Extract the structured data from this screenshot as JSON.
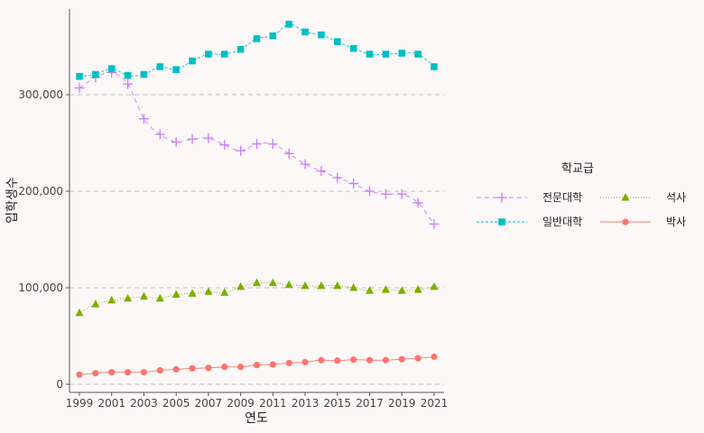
{
  "chart_data": {
    "type": "line",
    "xlabel": "연도",
    "ylabel": "입학생수",
    "legend_title": "학교급",
    "legend_position": "right",
    "grid": "horizontal dashed",
    "ylim": [
      0,
      375000
    ],
    "xlim": [
      1999,
      2021
    ],
    "y_ticks": [
      0,
      100000,
      200000,
      300000
    ],
    "y_tick_labels": [
      "0",
      "100,000",
      "200,000",
      "300,000"
    ],
    "x_ticks": [
      1999,
      2001,
      2003,
      2005,
      2007,
      2009,
      2011,
      2013,
      2015,
      2017,
      2019,
      2021
    ],
    "x_tick_labels": [
      "1999",
      "2001",
      "2003",
      "2005",
      "2007",
      "2009",
      "2011",
      "2013",
      "2015",
      "2017",
      "2019",
      "2021"
    ],
    "x": [
      1999,
      2000,
      2001,
      2002,
      2003,
      2004,
      2005,
      2006,
      2007,
      2008,
      2009,
      2010,
      2011,
      2012,
      2013,
      2014,
      2015,
      2016,
      2017,
      2018,
      2019,
      2020,
      2021
    ],
    "series": [
      {
        "name": "전문대학",
        "color": "#c77cff",
        "marker": "plus",
        "dash": "5,4",
        "values": [
          307000,
          318000,
          323000,
          311000,
          275000,
          259000,
          251000,
          254000,
          255000,
          248000,
          242000,
          249000,
          249000,
          239000,
          228000,
          221000,
          214000,
          208000,
          200000,
          197000,
          197000,
          188000,
          166000
        ]
      },
      {
        "name": "석사",
        "color": "#7cae00",
        "marker": "triangle",
        "dash": "1,2",
        "values": [
          74000,
          83000,
          87000,
          89000,
          91000,
          89000,
          93000,
          94000,
          96000,
          95000,
          101000,
          105000,
          105000,
          103000,
          102000,
          102000,
          102000,
          100000,
          97000,
          98000,
          97000,
          98000,
          101000
        ]
      },
      {
        "name": "일반대학",
        "color": "#00bfc4",
        "marker": "square",
        "dash": "3,2",
        "values": [
          319000,
          321000,
          327000,
          320000,
          321000,
          329000,
          326000,
          335000,
          342000,
          342000,
          347000,
          358000,
          361000,
          373000,
          365000,
          362000,
          355000,
          348000,
          342000,
          342000,
          343000,
          342000,
          329000
        ]
      },
      {
        "name": "박사",
        "color": "#f8766d",
        "marker": "circle",
        "dash": "",
        "values": [
          10000,
          11500,
          12500,
          12500,
          12500,
          14500,
          15500,
          16500,
          17000,
          18000,
          18000,
          20000,
          20500,
          22000,
          23000,
          25000,
          24500,
          25500,
          25000,
          25000,
          26000,
          27000,
          28500
        ]
      }
    ]
  }
}
